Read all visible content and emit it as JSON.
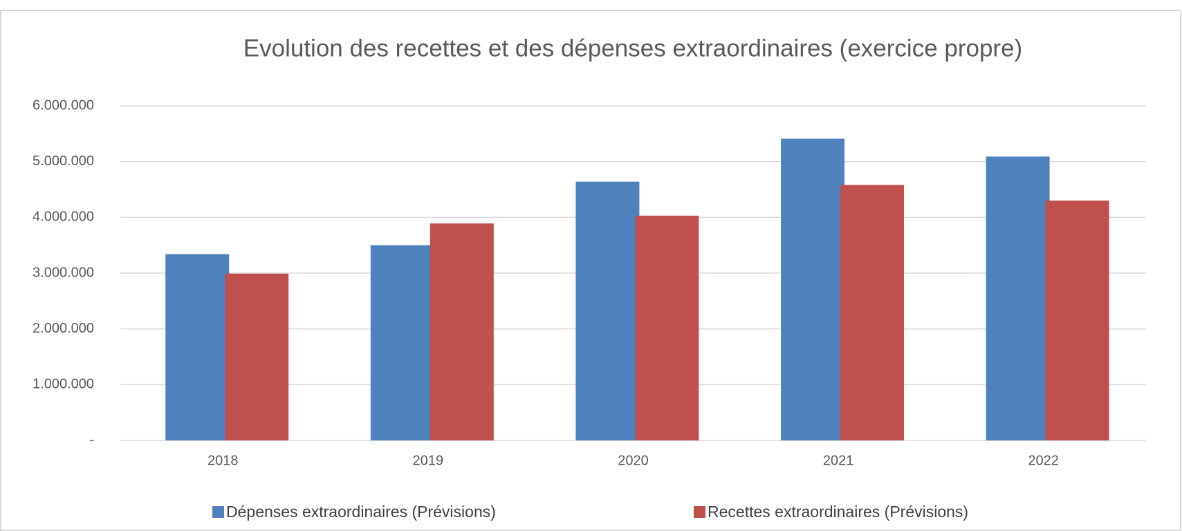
{
  "chart_data": {
    "type": "bar",
    "title": "Evolution des recettes et des dépenses extraordinaires (exercice propre)",
    "categories": [
      "2018",
      "2019",
      "2020",
      "2021",
      "2022"
    ],
    "series": [
      {
        "name": "Dépenses extraordinaires (Prévisions)",
        "color": "#4f81bd",
        "values": [
          3340000,
          3500000,
          4640000,
          5410000,
          5090000
        ]
      },
      {
        "name": "Recettes extraordinaires (Prévisions)",
        "color": "#c0504d",
        "values": [
          2990000,
          3890000,
          4030000,
          4580000,
          4300000
        ]
      }
    ],
    "ylim": [
      0,
      6000000
    ],
    "yticks": [
      {
        "value": 0,
        "label": "-"
      },
      {
        "value": 1000000,
        "label": "1.000.000"
      },
      {
        "value": 2000000,
        "label": "2.000.000"
      },
      {
        "value": 3000000,
        "label": "3.000.000"
      },
      {
        "value": 4000000,
        "label": "4.000.000"
      },
      {
        "value": 5000000,
        "label": "5.000.000"
      },
      {
        "value": 6000000,
        "label": "6.000.000"
      }
    ],
    "grid": true,
    "legend": "bottom"
  }
}
